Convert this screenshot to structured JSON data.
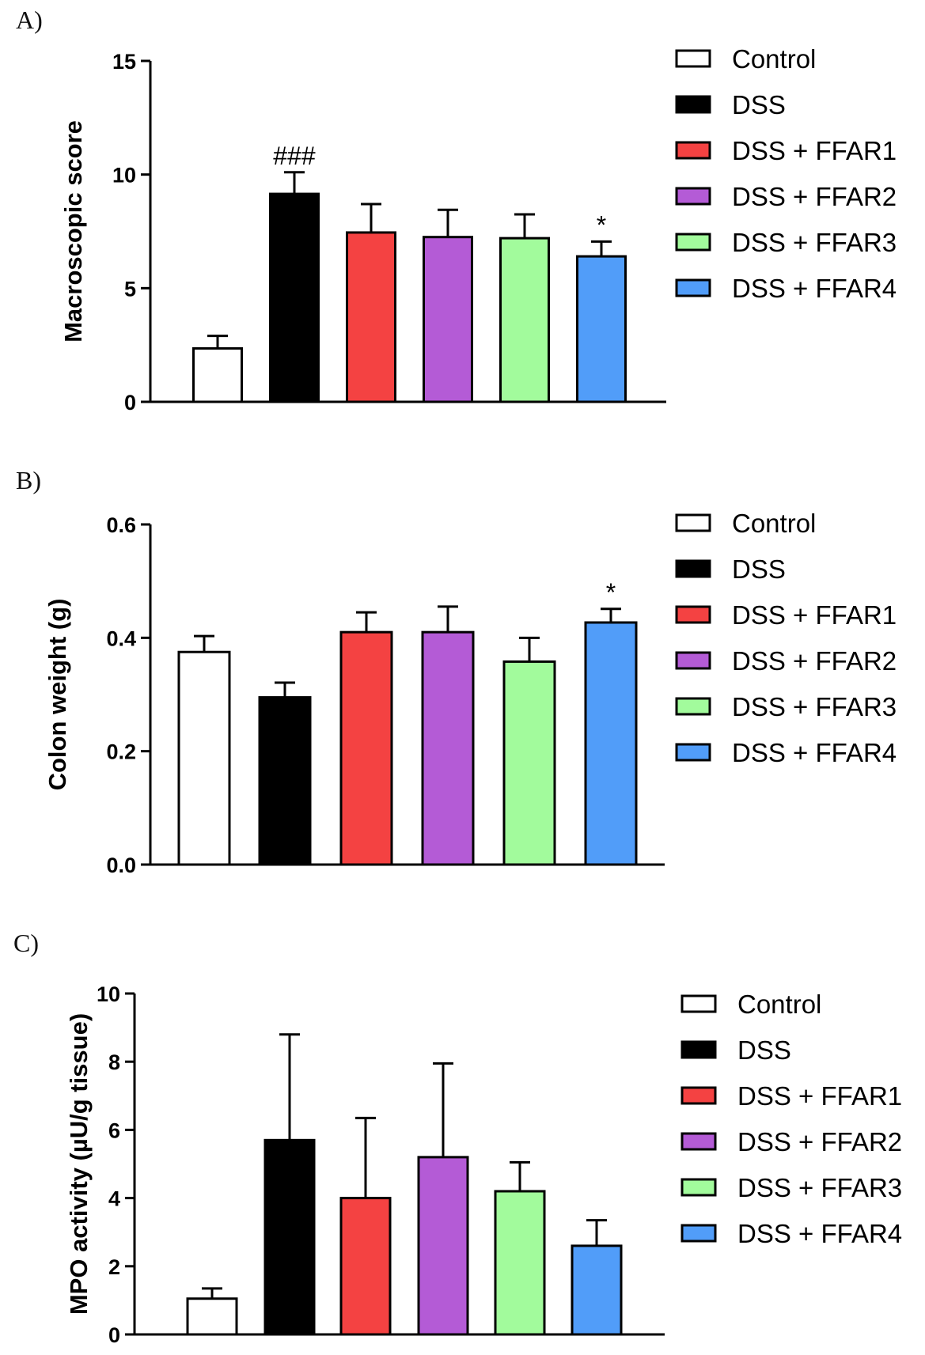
{
  "chart_data": [
    {
      "type": "bar",
      "panel_label": "A)",
      "ylabel": "Macroscopic score",
      "ylim": [
        0,
        15
      ],
      "yticks": [
        "0",
        "5",
        "10",
        "15"
      ],
      "categories": [
        "Control",
        "DSS",
        "DSS + FFAR1",
        "DSS + FFAR2",
        "DSS + FFAR3",
        "DSS + FFAR4"
      ],
      "values": [
        2.35,
        9.15,
        7.45,
        7.25,
        7.2,
        6.4
      ],
      "errors": [
        0.55,
        0.95,
        1.25,
        1.2,
        1.05,
        0.65
      ],
      "annotations": [
        "",
        "###",
        "",
        "",
        "",
        "*"
      ],
      "legend": [
        "Control",
        "DSS",
        "DSS + FFAR1",
        "DSS + FFAR2",
        "DSS + FFAR3",
        "DSS + FFAR4"
      ],
      "legend_position": "right",
      "grid": false
    },
    {
      "type": "bar",
      "panel_label": "B)",
      "ylabel": "Colon weight (g)",
      "ylim": [
        0,
        0.6
      ],
      "yticks": [
        "0.0",
        "0.2",
        "0.4",
        "0.6"
      ],
      "categories": [
        "Control",
        "DSS",
        "DSS + FFAR1",
        "DSS + FFAR2",
        "DSS + FFAR3",
        "DSS + FFAR4"
      ],
      "values": [
        0.375,
        0.295,
        0.41,
        0.41,
        0.358,
        0.427
      ],
      "errors": [
        0.028,
        0.026,
        0.035,
        0.045,
        0.042,
        0.024
      ],
      "annotations": [
        "",
        "",
        "",
        "",
        "",
        "*"
      ],
      "legend": [
        "Control",
        "DSS",
        "DSS + FFAR1",
        "DSS + FFAR2",
        "DSS + FFAR3",
        "DSS + FFAR4"
      ],
      "legend_position": "right",
      "grid": false
    },
    {
      "type": "bar",
      "panel_label": "C)",
      "ylabel": "MPO activity (µU/g tissue)",
      "ylim": [
        0,
        10
      ],
      "yticks": [
        "0",
        "2",
        "4",
        "6",
        "8",
        "10"
      ],
      "categories": [
        "Control",
        "DSS",
        "DSS + FFAR1",
        "DSS + FFAR2",
        "DSS + FFAR3",
        "DSS + FFAR4"
      ],
      "values": [
        1.05,
        5.7,
        4.0,
        5.2,
        4.2,
        2.6
      ],
      "errors": [
        0.3,
        3.1,
        2.35,
        2.75,
        0.85,
        0.75
      ],
      "annotations": [
        "",
        "",
        "",
        "",
        "",
        ""
      ],
      "legend": [
        "Control",
        "DSS",
        "DSS + FFAR1",
        "DSS + FFAR2",
        "DSS + FFAR3",
        "DSS + FFAR4"
      ],
      "legend_position": "right",
      "grid": false
    }
  ],
  "colors": {
    "Control": "#ffffff",
    "DSS": "#000000",
    "DSS + FFAR1": "#f44242",
    "DSS + FFAR2": "#b45bd6",
    "DSS + FFAR3": "#a2fb9c",
    "DSS + FFAR4": "#519df9"
  }
}
